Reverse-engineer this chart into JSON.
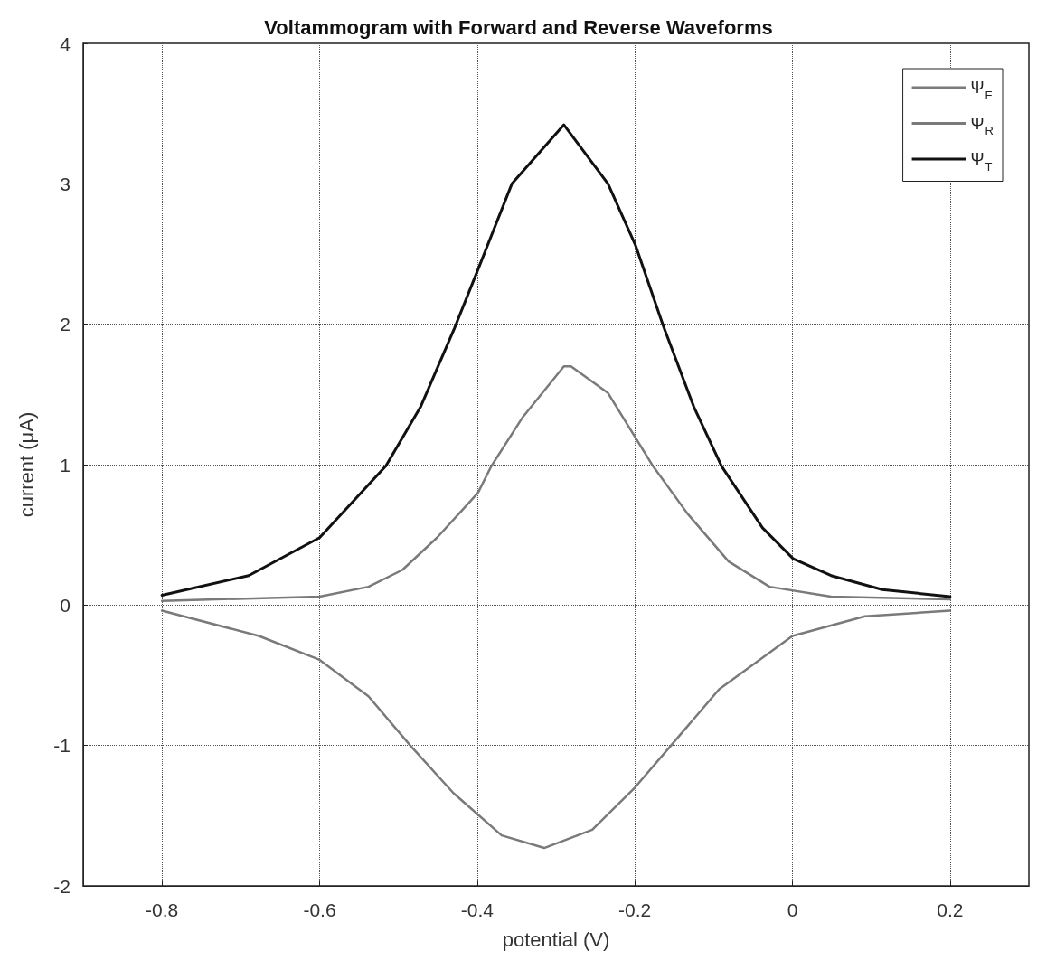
{
  "chart_data": {
    "type": "line",
    "title": "Voltammogram with Forward and Reverse Waveforms",
    "xlabel": "potential (V)",
    "ylabel": "current (μA)",
    "xlim": [
      -0.9,
      0.3
    ],
    "xticks": [
      -0.8,
      -0.6,
      -0.4,
      -0.2,
      0,
      0.2
    ],
    "ylim": [
      -2,
      4
    ],
    "yticks": [
      -2,
      -1,
      0,
      1,
      2,
      3,
      4
    ],
    "grid": true,
    "legend": "top right",
    "marker": "none",
    "line_style": "solid",
    "series": [
      {
        "name": "Ψ$_{F}$",
        "color": "#7a7a7a",
        "x": [
          -0.8,
          -0.6,
          -0.538,
          -0.495,
          -0.451,
          -0.399,
          -0.382,
          -0.342,
          -0.29,
          -0.281,
          -0.234,
          -0.177,
          -0.133,
          -0.081,
          -0.029,
          0.049,
          0.2
        ],
        "values": [
          0.03,
          0.06,
          0.13,
          0.25,
          0.48,
          0.8,
          0.99,
          1.34,
          1.7,
          1.7,
          1.51,
          0.99,
          0.65,
          0.31,
          0.13,
          0.06,
          0.04
        ]
      },
      {
        "name": "Ψ$_{R}$",
        "color": "#7a7a7a",
        "x": [
          -0.8,
          -0.677,
          -0.6,
          -0.538,
          -0.485,
          -0.43,
          -0.369,
          -0.315,
          -0.254,
          -0.2,
          -0.154,
          -0.093,
          0.0,
          0.092,
          0.2
        ],
        "values": [
          -0.04,
          -0.22,
          -0.39,
          -0.65,
          -1.0,
          -1.34,
          -1.64,
          -1.73,
          -1.6,
          -1.3,
          -1.0,
          -0.6,
          -0.22,
          -0.08,
          -0.04
        ]
      },
      {
        "name": "Ψ$_{T}$",
        "color": "#111111",
        "x": [
          -0.8,
          -0.69,
          -0.6,
          -0.516,
          -0.472,
          -0.429,
          -0.399,
          -0.356,
          -0.29,
          -0.234,
          -0.199,
          -0.164,
          -0.125,
          -0.09,
          -0.038,
          0.001,
          0.049,
          0.114,
          0.2
        ],
        "values": [
          0.07,
          0.21,
          0.48,
          0.99,
          1.41,
          1.97,
          2.39,
          3.0,
          3.42,
          3.0,
          2.56,
          1.99,
          1.41,
          0.99,
          0.55,
          0.33,
          0.21,
          0.11,
          0.06
        ]
      }
    ]
  }
}
